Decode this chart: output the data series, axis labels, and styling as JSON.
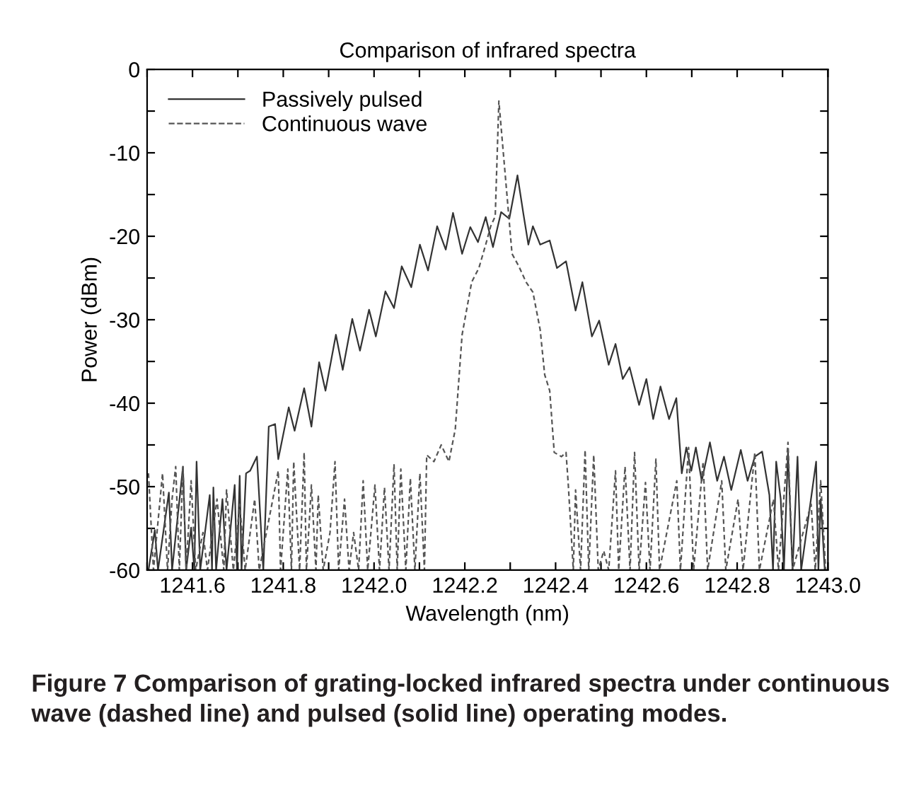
{
  "chart_data": {
    "type": "line",
    "title": "Comparison of infrared spectra",
    "xlabel": "Wavelength (nm)",
    "ylabel": "Power (dBm)",
    "annotations": [
      "Figure 7 Comparison of grating-locked infrared spectra under continuous wave (dashed line) and pulsed (solid line) operating modes."
    ],
    "xlim": [
      1241.5,
      1243.0
    ],
    "xticks": [
      {
        "value": 1241.5,
        "label": null
      },
      1241.6,
      {
        "value": 1241.7,
        "label": null
      },
      1241.8,
      {
        "value": 1241.9,
        "label": null
      },
      {
        "value": 1242.0,
        "label": "1242.0"
      },
      {
        "value": 1242.1,
        "label": null
      },
      1242.2,
      {
        "value": 1242.3,
        "label": null
      },
      1242.4,
      {
        "value": 1242.5,
        "label": null
      },
      1242.6,
      {
        "value": 1242.7,
        "label": null
      },
      1242.8,
      {
        "value": 1242.9,
        "label": null
      },
      {
        "value": 1243.0,
        "label": "1243.0"
      }
    ],
    "ylim": [
      -60,
      0
    ],
    "yticks": [
      -60,
      {
        "value": -55,
        "label": null
      },
      -50,
      {
        "value": -45,
        "label": null
      },
      -40,
      {
        "value": -35,
        "label": null
      },
      -30,
      {
        "value": -25,
        "label": null
      },
      -20,
      {
        "value": -15,
        "label": null
      },
      -10,
      {
        "value": -5,
        "label": null
      },
      0
    ],
    "legend": "top left",
    "grid": false,
    "marker": "none",
    "series": [
      {
        "name": "Passively pulsed",
        "color": "#333333",
        "line_style": "solid",
        "x": [
          1241.503,
          1241.517,
          1241.524,
          1241.548,
          1241.555,
          1241.579,
          1241.586,
          1241.597,
          1241.604,
          1241.609,
          1241.617,
          1241.638,
          1241.643,
          1241.646,
          1241.652,
          1241.666,
          1241.675,
          1241.693,
          1241.698,
          1241.704,
          1241.708,
          1241.718,
          1241.727,
          1241.742,
          1241.756,
          1241.768,
          1241.782,
          1241.789,
          1241.812,
          1241.825,
          1241.846,
          1241.862,
          1241.879,
          1241.893,
          1241.916,
          1241.931,
          1241.952,
          1241.969,
          1241.989,
          1242.004,
          1242.025,
          1242.044,
          1242.061,
          1242.082,
          1242.101,
          1242.119,
          1242.139,
          1242.158,
          1242.174,
          1242.194,
          1242.212,
          1242.229,
          1242.246,
          1242.262,
          1242.28,
          1242.298,
          1242.316,
          1242.329,
          1242.34,
          1242.35,
          1242.366,
          1242.387,
          1242.403,
          1242.423,
          1242.444,
          1242.459,
          1242.48,
          1242.496,
          1242.517,
          1242.532,
          1242.548,
          1242.563,
          1242.584,
          1242.6,
          1242.615,
          1242.631,
          1242.65,
          1242.666,
          1242.678,
          1242.688,
          1242.699,
          1242.709,
          1242.722,
          1242.74,
          1242.756,
          1242.771,
          1242.787,
          1242.808,
          1242.823,
          1242.839,
          1242.855,
          1242.871,
          1242.879,
          1242.886,
          1242.896,
          1242.903,
          1242.912,
          1242.922,
          1242.933,
          1242.941,
          1242.974,
          1242.979,
          1242.984,
          1242.993
        ],
        "values": [
          -60,
          -55.2,
          -60,
          -50.7,
          -60,
          -47.6,
          -60,
          -54.9,
          -60,
          -47.0,
          -60,
          -51.0,
          -60,
          -50.1,
          -60,
          -51.5,
          -60,
          -49.8,
          -60,
          -48.7,
          -60,
          -48.4,
          -48.1,
          -46.4,
          -60,
          -42.8,
          -42.5,
          -46.7,
          -40.5,
          -43.3,
          -38.2,
          -42.8,
          -35.1,
          -38.5,
          -31.8,
          -36.0,
          -29.9,
          -33.7,
          -28.8,
          -32.0,
          -26.6,
          -28.6,
          -23.6,
          -26.1,
          -21.0,
          -24.1,
          -18.8,
          -21.6,
          -17.2,
          -22.1,
          -18.9,
          -20.7,
          -17.7,
          -21.3,
          -17.1,
          -17.9,
          -12.7,
          -17.3,
          -21.0,
          -18.8,
          -21.0,
          -20.5,
          -23.8,
          -23.0,
          -28.9,
          -25.5,
          -32.0,
          -30.1,
          -35.4,
          -32.9,
          -37.1,
          -35.7,
          -40.2,
          -37.1,
          -41.9,
          -38.0,
          -41.9,
          -39.4,
          -48.4,
          -45.3,
          -48.1,
          -45.3,
          -49.3,
          -44.7,
          -49.3,
          -46.4,
          -50.4,
          -45.6,
          -49.3,
          -46.4,
          -45.8,
          -51.0,
          -60,
          -47.0,
          -51.5,
          -60,
          -45.9,
          -60,
          -46.4,
          -60,
          -47.0,
          -60,
          -51.5,
          -60
        ]
      },
      {
        "name": "Continuous wave",
        "color": "#555555",
        "line_style": "dashed",
        "x": [
          1241.503,
          1241.514,
          1241.534,
          1241.545,
          1241.555,
          1241.563,
          1241.571,
          1241.579,
          1241.586,
          1241.597,
          1241.607,
          1241.623,
          1241.633,
          1241.654,
          1241.669,
          1241.675,
          1241.69,
          1241.704,
          1241.716,
          1241.737,
          1241.747,
          1241.789,
          1241.794,
          1241.81,
          1241.818,
          1241.823,
          1241.836,
          1241.846,
          1241.851,
          1241.862,
          1241.872,
          1241.877,
          1241.888,
          1241.903,
          1241.914,
          1241.922,
          1241.935,
          1241.945,
          1241.955,
          1241.966,
          1241.976,
          1241.986,
          1242.002,
          1242.012,
          1242.023,
          1242.033,
          1242.044,
          1242.051,
          1242.059,
          1242.07,
          1242.08,
          1242.09,
          1242.101,
          1242.111,
          1242.116,
          1242.132,
          1242.148,
          1242.165,
          1242.179,
          1242.194,
          1242.215,
          1242.231,
          1242.246,
          1242.257,
          1242.267,
          1242.275,
          1242.288,
          1242.304,
          1242.319,
          1242.335,
          1242.35,
          1242.366,
          1242.376,
          1242.387,
          1242.397,
          1242.413,
          1242.423,
          1242.428,
          1242.439,
          1242.444,
          1242.455,
          1242.465,
          1242.473,
          1242.484,
          1242.494,
          1242.506,
          1242.517,
          1242.532,
          1242.539,
          1242.553,
          1242.564,
          1242.574,
          1242.584,
          1242.598,
          1242.608,
          1242.621,
          1242.629,
          1242.667,
          1242.675,
          1242.693,
          1242.704,
          1242.725,
          1242.735,
          1242.766,
          1242.775,
          1242.802,
          1242.813,
          1242.839,
          1242.849,
          1242.88,
          1242.891,
          1242.912,
          1242.922,
          1242.963,
          1242.972,
          1242.984,
          1242.995
        ],
        "values": [
          -48.4,
          -60,
          -48.4,
          -60,
          -51.5,
          -47.6,
          -60,
          -47.6,
          -60,
          -49.3,
          -60,
          -55.5,
          -60,
          -51.5,
          -60,
          -50.4,
          -60,
          -52.1,
          -60,
          -51.5,
          -60,
          -48.1,
          -60,
          -47.9,
          -60,
          -47.0,
          -60,
          -45.9,
          -60,
          -49.8,
          -60,
          -51.0,
          -60,
          -55.5,
          -47.0,
          -60,
          -51.5,
          -60,
          -55.5,
          -60,
          -49.3,
          -60,
          -49.8,
          -60,
          -50.1,
          -60,
          -47.3,
          -60,
          -47.9,
          -60,
          -49.0,
          -60,
          -48.4,
          -60,
          -46.2,
          -47.0,
          -45.0,
          -47.0,
          -43.1,
          -31.8,
          -25.5,
          -23.8,
          -21.0,
          -18.8,
          -17.6,
          -3.8,
          -12.0,
          -22.1,
          -23.6,
          -25.5,
          -26.7,
          -31.2,
          -36.6,
          -38.5,
          -45.9,
          -46.4,
          -45.9,
          -49.8,
          -60,
          -50.4,
          -60,
          -45.6,
          -60,
          -46.2,
          -60,
          -57.7,
          -60,
          -48.1,
          -60,
          -47.6,
          -60,
          -45.9,
          -60,
          -49.5,
          -60,
          -46.7,
          -60,
          -49.3,
          -60,
          -45.3,
          -60,
          -47.0,
          -60,
          -49.3,
          -60,
          -51.5,
          -60,
          -45.9,
          -60,
          -51.5,
          -60,
          -44.7,
          -60,
          -52.1,
          -60,
          -49.3,
          -60
        ]
      }
    ]
  }
}
